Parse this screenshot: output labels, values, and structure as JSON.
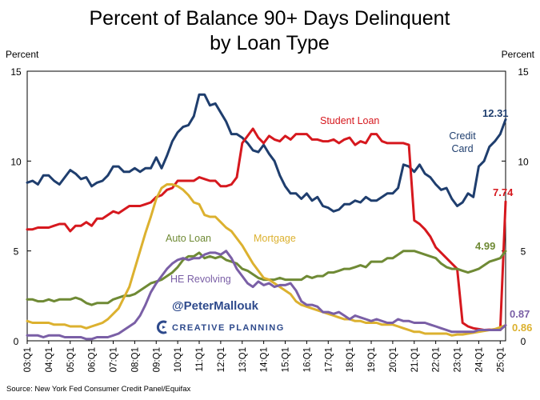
{
  "chart_data": {
    "type": "line",
    "title_line1": "Percent of Balance 90+ Days Delinquent",
    "title_line2": "by Loan Type",
    "ylabel_left": "Percent",
    "ylabel_right": "Percent",
    "ylim": [
      0,
      15
    ],
    "yticks": [
      "0",
      "5",
      "10",
      "15"
    ],
    "xlim": [
      2003.0,
      2025.25
    ],
    "xticks": [
      "03:Q1",
      "04:Q1",
      "05:Q1",
      "06:Q1",
      "07:Q1",
      "08:Q1",
      "09:Q1",
      "10:Q1",
      "11:Q1",
      "12:Q1",
      "13:Q1",
      "14:Q1",
      "15:Q1",
      "16:Q1",
      "17:Q1",
      "18:Q1",
      "19:Q1",
      "20:Q1",
      "21:Q1",
      "22:Q1",
      "23:Q1",
      "24:Q1",
      "25:Q1"
    ],
    "source": "Source: New York Fed Consumer Credit Panel/Equifax",
    "watermark": {
      "handle": "@PeterMallouk",
      "brand": "CREATIVE PLANNING"
    },
    "series": [
      {
        "name": "Credit Card",
        "label_lines": [
          "Credit",
          "Card"
        ],
        "end_label": "12.31",
        "color": "#1f3e6e",
        "x": [
          2003.0,
          2003.25,
          2003.5,
          2003.75,
          2004.0,
          2004.25,
          2004.5,
          2004.75,
          2005.0,
          2005.25,
          2005.5,
          2005.75,
          2006.0,
          2006.25,
          2006.5,
          2006.75,
          2007.0,
          2007.25,
          2007.5,
          2007.75,
          2008.0,
          2008.25,
          2008.5,
          2008.75,
          2009.0,
          2009.25,
          2009.5,
          2009.75,
          2010.0,
          2010.25,
          2010.5,
          2010.75,
          2011.0,
          2011.25,
          2011.5,
          2011.75,
          2012.0,
          2012.25,
          2012.5,
          2012.75,
          2013.0,
          2013.25,
          2013.5,
          2013.75,
          2014.0,
          2014.25,
          2014.5,
          2014.75,
          2015.0,
          2015.25,
          2015.5,
          2015.75,
          2016.0,
          2016.25,
          2016.5,
          2016.75,
          2017.0,
          2017.25,
          2017.5,
          2017.75,
          2018.0,
          2018.25,
          2018.5,
          2018.75,
          2019.0,
          2019.25,
          2019.5,
          2019.75,
          2020.0,
          2020.25,
          2020.5,
          2020.75,
          2021.0,
          2021.25,
          2021.5,
          2021.75,
          2022.0,
          2022.25,
          2022.5,
          2022.75,
          2023.0,
          2023.25,
          2023.5,
          2023.75,
          2024.0,
          2024.25,
          2024.5,
          2024.75,
          2025.0,
          2025.25
        ],
        "values": [
          8.8,
          8.9,
          8.7,
          9.2,
          9.2,
          8.9,
          8.7,
          9.1,
          9.5,
          9.3,
          9.0,
          9.1,
          8.6,
          8.8,
          8.9,
          9.2,
          9.7,
          9.7,
          9.4,
          9.4,
          9.6,
          9.4,
          9.6,
          9.6,
          10.2,
          9.6,
          10.3,
          11.1,
          11.6,
          11.9,
          12.0,
          12.5,
          13.7,
          13.7,
          13.1,
          13.2,
          12.7,
          12.2,
          11.5,
          11.5,
          11.3,
          11.0,
          10.6,
          10.5,
          10.9,
          10.4,
          10.0,
          9.2,
          8.6,
          8.2,
          8.2,
          7.9,
          8.2,
          7.8,
          8.0,
          7.5,
          7.4,
          7.2,
          7.3,
          7.6,
          7.6,
          7.8,
          7.7,
          8.0,
          7.8,
          7.8,
          8.0,
          8.2,
          8.2,
          8.5,
          9.8,
          9.7,
          9.4,
          9.8,
          9.3,
          9.1,
          8.7,
          8.4,
          8.5,
          7.9,
          7.5,
          7.7,
          8.2,
          8.0,
          9.7,
          10.0,
          10.8,
          11.1,
          11.5,
          12.31
        ]
      },
      {
        "name": "Student Loan",
        "label_lines": [
          "Student Loan"
        ],
        "end_label": "7.74",
        "color": "#d6181e",
        "x": [
          2003.0,
          2003.25,
          2003.5,
          2003.75,
          2004.0,
          2004.25,
          2004.5,
          2004.75,
          2005.0,
          2005.25,
          2005.5,
          2005.75,
          2006.0,
          2006.25,
          2006.5,
          2006.75,
          2007.0,
          2007.25,
          2007.5,
          2007.75,
          2008.0,
          2008.25,
          2008.5,
          2008.75,
          2009.0,
          2009.25,
          2009.5,
          2009.75,
          2010.0,
          2010.25,
          2010.5,
          2010.75,
          2011.0,
          2011.25,
          2011.5,
          2011.75,
          2012.0,
          2012.25,
          2012.5,
          2012.75,
          2013.0,
          2013.25,
          2013.5,
          2013.75,
          2014.0,
          2014.25,
          2014.5,
          2014.75,
          2015.0,
          2015.25,
          2015.5,
          2015.75,
          2016.0,
          2016.25,
          2016.5,
          2016.75,
          2017.0,
          2017.25,
          2017.5,
          2017.75,
          2018.0,
          2018.25,
          2018.5,
          2018.75,
          2019.0,
          2019.25,
          2019.5,
          2019.75,
          2020.0,
          2020.25,
          2020.5,
          2020.75,
          2021.0,
          2021.25,
          2021.5,
          2021.75,
          2022.0,
          2022.25,
          2022.5,
          2022.75,
          2023.0,
          2023.25,
          2023.5,
          2023.75,
          2024.0,
          2024.25,
          2024.5,
          2024.75,
          2025.0,
          2025.25
        ],
        "values": [
          6.2,
          6.2,
          6.3,
          6.3,
          6.3,
          6.4,
          6.5,
          6.5,
          6.1,
          6.4,
          6.4,
          6.6,
          6.4,
          6.8,
          6.8,
          7.0,
          7.2,
          7.1,
          7.3,
          7.5,
          7.5,
          7.5,
          7.6,
          7.7,
          8.0,
          8.1,
          8.4,
          8.5,
          8.9,
          8.9,
          8.9,
          8.9,
          9.1,
          9.0,
          8.9,
          8.9,
          8.6,
          8.6,
          8.7,
          9.1,
          11.0,
          11.4,
          11.8,
          11.3,
          11.0,
          11.4,
          11.2,
          11.1,
          11.4,
          11.2,
          11.5,
          11.5,
          11.5,
          11.2,
          11.2,
          11.1,
          11.1,
          11.2,
          11.0,
          11.2,
          11.3,
          10.9,
          11.1,
          11.0,
          11.5,
          11.5,
          11.1,
          11.0,
          11.0,
          11.0,
          11.0,
          10.9,
          6.7,
          6.5,
          6.2,
          5.8,
          5.2,
          4.9,
          4.6,
          4.3,
          4.0,
          1.0,
          0.8,
          0.7,
          0.65,
          0.6,
          0.62,
          0.6,
          0.6,
          7.74
        ]
      },
      {
        "name": "Auto Loan",
        "label_lines": [
          "Auto Loan"
        ],
        "end_label": "4.99",
        "color": "#6f8a35",
        "x": [
          2003.0,
          2003.25,
          2003.5,
          2003.75,
          2004.0,
          2004.25,
          2004.5,
          2004.75,
          2005.0,
          2005.25,
          2005.5,
          2005.75,
          2006.0,
          2006.25,
          2006.5,
          2006.75,
          2007.0,
          2007.25,
          2007.5,
          2007.75,
          2008.0,
          2008.25,
          2008.5,
          2008.75,
          2009.0,
          2009.25,
          2009.5,
          2009.75,
          2010.0,
          2010.25,
          2010.5,
          2010.75,
          2011.0,
          2011.25,
          2011.5,
          2011.75,
          2012.0,
          2012.25,
          2012.5,
          2012.75,
          2013.0,
          2013.25,
          2013.5,
          2013.75,
          2014.0,
          2014.25,
          2014.5,
          2014.75,
          2015.0,
          2015.25,
          2015.5,
          2015.75,
          2016.0,
          2016.25,
          2016.5,
          2016.75,
          2017.0,
          2017.25,
          2017.5,
          2017.75,
          2018.0,
          2018.25,
          2018.5,
          2018.75,
          2019.0,
          2019.25,
          2019.5,
          2019.75,
          2020.0,
          2020.25,
          2020.5,
          2020.75,
          2021.0,
          2021.25,
          2021.5,
          2021.75,
          2022.0,
          2022.25,
          2022.5,
          2022.75,
          2023.0,
          2023.25,
          2023.5,
          2023.75,
          2024.0,
          2024.25,
          2024.5,
          2024.75,
          2025.0,
          2025.25
        ],
        "values": [
          2.3,
          2.3,
          2.2,
          2.2,
          2.3,
          2.2,
          2.3,
          2.3,
          2.3,
          2.4,
          2.3,
          2.1,
          2.0,
          2.1,
          2.1,
          2.1,
          2.3,
          2.4,
          2.5,
          2.5,
          2.6,
          2.8,
          3.0,
          3.2,
          3.3,
          3.4,
          3.6,
          3.8,
          4.1,
          4.5,
          4.7,
          4.7,
          4.9,
          4.6,
          4.7,
          4.6,
          4.7,
          4.5,
          4.4,
          4.3,
          4.0,
          3.9,
          3.7,
          3.5,
          3.4,
          3.4,
          3.4,
          3.5,
          3.4,
          3.4,
          3.4,
          3.4,
          3.6,
          3.5,
          3.6,
          3.6,
          3.8,
          3.8,
          3.9,
          4.0,
          4.0,
          4.1,
          4.2,
          4.1,
          4.4,
          4.4,
          4.4,
          4.6,
          4.6,
          4.8,
          5.0,
          5.0,
          5.0,
          4.9,
          4.8,
          4.7,
          4.6,
          4.3,
          4.1,
          4.0,
          4.0,
          3.9,
          3.8,
          3.9,
          4.0,
          4.2,
          4.4,
          4.5,
          4.6,
          4.99
        ]
      },
      {
        "name": "Mortgage",
        "label_lines": [
          "Mortgage"
        ],
        "end_label": "0.86",
        "color": "#dcb12f",
        "x": [
          2003.0,
          2003.25,
          2003.5,
          2003.75,
          2004.0,
          2004.25,
          2004.5,
          2004.75,
          2005.0,
          2005.25,
          2005.5,
          2005.75,
          2006.0,
          2006.25,
          2006.5,
          2006.75,
          2007.0,
          2007.25,
          2007.5,
          2007.75,
          2008.0,
          2008.25,
          2008.5,
          2008.75,
          2009.0,
          2009.25,
          2009.5,
          2009.75,
          2010.0,
          2010.25,
          2010.5,
          2010.75,
          2011.0,
          2011.25,
          2011.5,
          2011.75,
          2012.0,
          2012.25,
          2012.5,
          2012.75,
          2013.0,
          2013.25,
          2013.5,
          2013.75,
          2014.0,
          2014.25,
          2014.5,
          2014.75,
          2015.0,
          2015.25,
          2015.5,
          2015.75,
          2016.0,
          2016.25,
          2016.5,
          2016.75,
          2017.0,
          2017.25,
          2017.5,
          2017.75,
          2018.0,
          2018.25,
          2018.5,
          2018.75,
          2019.0,
          2019.25,
          2019.5,
          2019.75,
          2020.0,
          2020.25,
          2020.5,
          2020.75,
          2021.0,
          2021.25,
          2021.5,
          2021.75,
          2022.0,
          2022.25,
          2022.5,
          2022.75,
          2023.0,
          2023.25,
          2023.5,
          2023.75,
          2024.0,
          2024.25,
          2024.5,
          2024.75,
          2025.0,
          2025.25
        ],
        "values": [
          1.1,
          1.0,
          1.0,
          1.0,
          1.0,
          0.9,
          0.9,
          0.9,
          0.8,
          0.8,
          0.8,
          0.7,
          0.8,
          0.9,
          1.0,
          1.2,
          1.5,
          1.8,
          2.4,
          3.0,
          4.0,
          5.0,
          6.0,
          6.9,
          7.9,
          8.5,
          8.7,
          8.7,
          8.6,
          8.4,
          8.1,
          7.7,
          7.6,
          7.0,
          6.9,
          6.9,
          6.6,
          6.3,
          6.1,
          5.7,
          5.3,
          4.8,
          4.3,
          3.9,
          3.5,
          3.4,
          3.2,
          3.0,
          2.8,
          2.6,
          2.2,
          2.0,
          1.9,
          1.8,
          1.7,
          1.6,
          1.5,
          1.4,
          1.3,
          1.2,
          1.2,
          1.1,
          1.1,
          1.0,
          1.0,
          1.0,
          0.9,
          0.9,
          0.9,
          0.8,
          0.7,
          0.6,
          0.5,
          0.5,
          0.4,
          0.4,
          0.4,
          0.4,
          0.4,
          0.3,
          0.35,
          0.35,
          0.4,
          0.45,
          0.5,
          0.55,
          0.6,
          0.65,
          0.75,
          0.86
        ]
      },
      {
        "name": "HE Revolving",
        "label_lines": [
          "HE Revolving"
        ],
        "end_label": "0.87",
        "color": "#7a5fa6",
        "x": [
          2003.0,
          2003.25,
          2003.5,
          2003.75,
          2004.0,
          2004.25,
          2004.5,
          2004.75,
          2005.0,
          2005.25,
          2005.5,
          2005.75,
          2006.0,
          2006.25,
          2006.5,
          2006.75,
          2007.0,
          2007.25,
          2007.5,
          2007.75,
          2008.0,
          2008.25,
          2008.5,
          2008.75,
          2009.0,
          2009.25,
          2009.5,
          2009.75,
          2010.0,
          2010.25,
          2010.5,
          2010.75,
          2011.0,
          2011.25,
          2011.5,
          2011.75,
          2012.0,
          2012.25,
          2012.5,
          2012.75,
          2013.0,
          2013.25,
          2013.5,
          2013.75,
          2014.0,
          2014.25,
          2014.5,
          2014.75,
          2015.0,
          2015.25,
          2015.5,
          2015.75,
          2016.0,
          2016.25,
          2016.5,
          2016.75,
          2017.0,
          2017.25,
          2017.5,
          2017.75,
          2018.0,
          2018.25,
          2018.5,
          2018.75,
          2019.0,
          2019.25,
          2019.5,
          2019.75,
          2020.0,
          2020.25,
          2020.5,
          2020.75,
          2021.0,
          2021.25,
          2021.5,
          2021.75,
          2022.0,
          2022.25,
          2022.5,
          2022.75,
          2023.0,
          2023.25,
          2023.5,
          2023.75,
          2024.0,
          2024.25,
          2024.5,
          2024.75,
          2025.0,
          2025.25
        ],
        "values": [
          0.3,
          0.3,
          0.3,
          0.2,
          0.3,
          0.3,
          0.3,
          0.2,
          0.2,
          0.2,
          0.2,
          0.1,
          0.1,
          0.2,
          0.2,
          0.2,
          0.3,
          0.4,
          0.6,
          0.8,
          1.0,
          1.4,
          2.0,
          2.7,
          3.2,
          3.6,
          4.0,
          4.3,
          4.5,
          4.6,
          4.5,
          4.6,
          4.6,
          4.8,
          4.9,
          4.9,
          4.8,
          5.0,
          4.6,
          4.0,
          3.6,
          3.2,
          3.0,
          3.3,
          3.1,
          3.2,
          3.0,
          3.1,
          3.1,
          3.2,
          2.8,
          2.2,
          2.0,
          2.0,
          1.9,
          1.6,
          1.6,
          1.5,
          1.6,
          1.4,
          1.2,
          1.4,
          1.3,
          1.2,
          1.1,
          1.2,
          1.1,
          1.0,
          1.0,
          1.2,
          1.1,
          1.1,
          1.0,
          1.0,
          1.0,
          0.9,
          0.8,
          0.7,
          0.6,
          0.5,
          0.5,
          0.5,
          0.5,
          0.5,
          0.6,
          0.6,
          0.6,
          0.6,
          0.6,
          0.87
        ]
      }
    ]
  }
}
